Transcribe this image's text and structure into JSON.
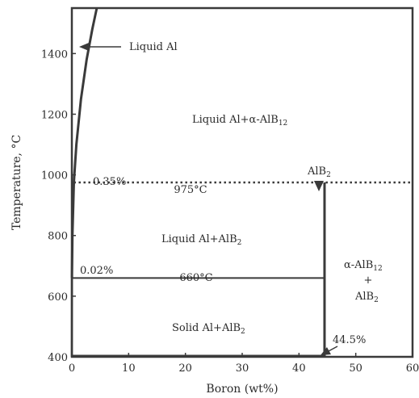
{
  "chart_data": {
    "type": "phase-diagram",
    "title": "",
    "xlabel": "Boron (wt%)",
    "ylabel": "Temperature, °C",
    "xlim": [
      0,
      60
    ],
    "ylim": [
      400,
      1550
    ],
    "x_ticks": [
      0,
      10,
      20,
      30,
      40,
      50,
      60
    ],
    "y_ticks": [
      400,
      600,
      800,
      1000,
      1200,
      1400
    ],
    "colors": {
      "line": "#3a3a3a",
      "text": "#2a2a2a",
      "background": "#ffffff"
    },
    "curves": {
      "liquidus": {
        "name": "liquidus",
        "x": [
          0.02,
          0.1,
          0.35,
          0.8,
          1.6,
          2.6,
          3.6,
          4.4
        ],
        "y": [
          660,
          800,
          975,
          1100,
          1250,
          1380,
          1480,
          1550
        ]
      },
      "solvus": {
        "name": "solvus",
        "x": [
          0,
          0.01,
          0.02
        ],
        "y": [
          400,
          600,
          660
        ]
      }
    },
    "isotherms": [
      {
        "name": "peritectic",
        "y": 975,
        "x_from": 0.35,
        "x_to": 60,
        "style": "dotted",
        "label": "975°C"
      },
      {
        "name": "eutectic",
        "y": 660,
        "x_from": 0.02,
        "x_to": 44.5,
        "style": "solid",
        "label": "660°C"
      }
    ],
    "compound_lines": [
      {
        "name": "AlB2",
        "x": 44.5,
        "y_from": 400,
        "y_to": 975
      }
    ],
    "annotations": {
      "liquid_al": "Liquid Al",
      "pct_035": "0.35%",
      "pct_002": "0.02%",
      "pct_445": "44.5%",
      "t975": "975°C",
      "t660": "660°C",
      "alb2_main": "AlB",
      "alb2_sub": "2"
    },
    "regions": {
      "liquid_alpha_pre": "Liquid Al+α-AlB",
      "liquid_alpha_sub": "12",
      "liquid_alb2_pre": "Liquid Al+AlB",
      "liquid_alb2_sub": "2",
      "solid_pre": "Solid Al+AlB",
      "solid_sub": "2",
      "alpha_main": "α-AlB",
      "alpha_sub": "12",
      "plus": "+",
      "alb2_main": "AlB",
      "alb2_sub": "2"
    }
  }
}
